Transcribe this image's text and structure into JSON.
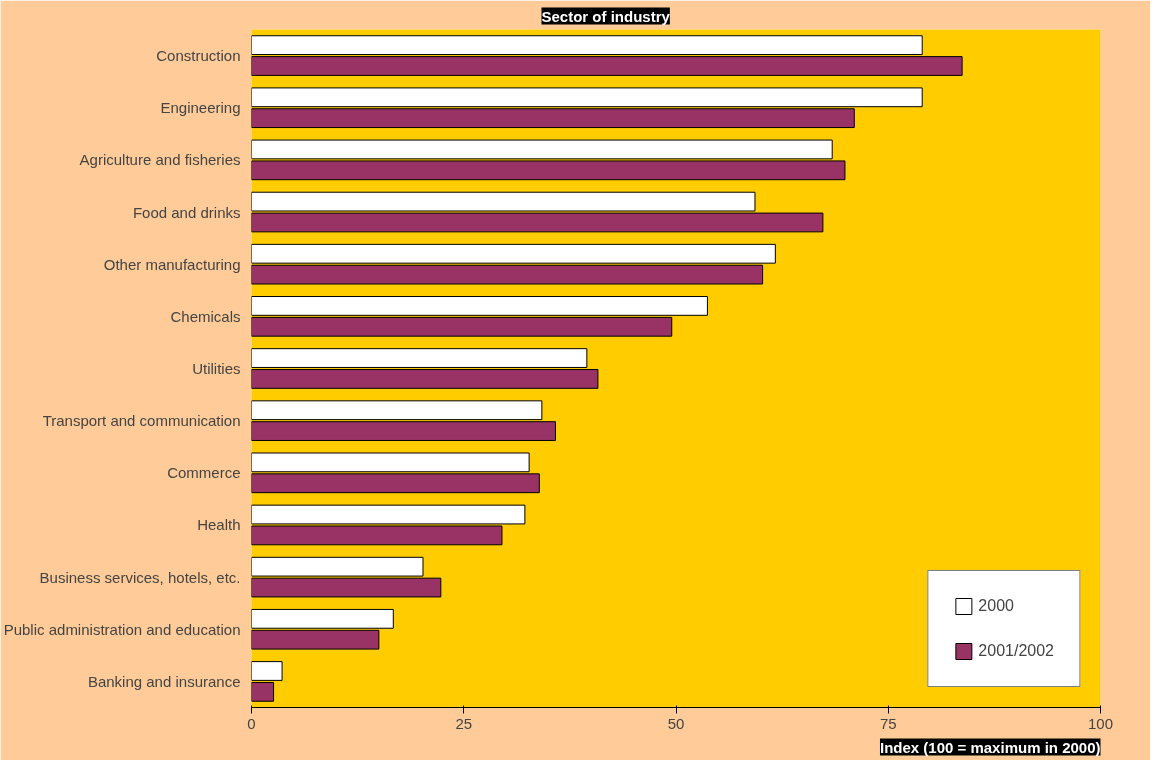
{
  "chart_data": {
    "type": "bar",
    "orientation": "horizontal",
    "ylabel": "Sector of industry",
    "xlabel": "Index (100 = maximum in 2000)",
    "categories": [
      "Construction",
      "Engineering",
      "Agriculture and fisheries",
      "Food and drinks",
      "Other manufacturing",
      "Chemicals",
      "Utilities",
      "Transport and communication",
      "Commerce",
      "Health",
      "Business services, hotels, etc.",
      "Public administration and education",
      "Banking and insurance"
    ],
    "series": [
      {
        "name": "2000",
        "color": "#ffffff",
        "values": [
          79,
          79,
          68.4,
          59.3,
          61.7,
          53.7,
          39.5,
          34.2,
          32.7,
          32.2,
          20.2,
          16.7,
          3.6
        ]
      },
      {
        "name": "2001/2002",
        "color": "#993366",
        "values": [
          83.7,
          71,
          69.9,
          67.3,
          60.2,
          49.5,
          40.8,
          35.8,
          33.9,
          29.5,
          22.3,
          15,
          2.6
        ]
      }
    ],
    "xlim": [
      0,
      100
    ],
    "xticks": [
      0,
      25,
      50,
      75,
      100
    ],
    "grid": false,
    "legend": "bottom right"
  }
}
